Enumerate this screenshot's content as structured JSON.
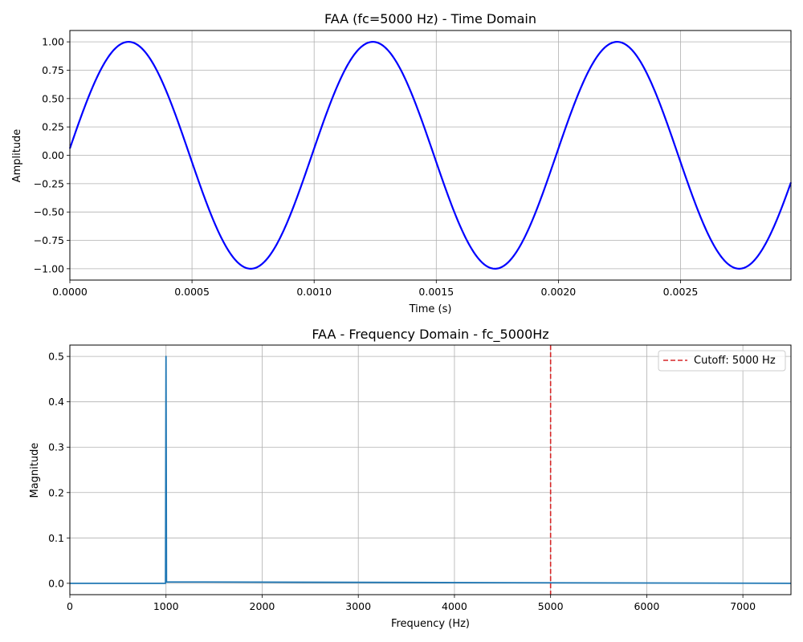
{
  "chart_data": [
    {
      "type": "line",
      "title": "FAA (fc=5000 Hz) - Time Domain",
      "xlabel": "Time (s)",
      "ylabel": "Amplitude",
      "xlim": [
        0,
        0.002952
      ],
      "ylim": [
        -1.1,
        1.1
      ],
      "x_ticks": [
        0.0,
        0.0005,
        0.001,
        0.0015,
        0.002,
        0.0025
      ],
      "x_tick_labels": [
        "0.0000",
        "0.0005",
        "0.0010",
        "0.0015",
        "0.0020",
        "0.0025"
      ],
      "y_ticks": [
        -1.0,
        -0.75,
        -0.5,
        -0.25,
        0.0,
        0.25,
        0.5,
        0.75,
        1.0
      ],
      "y_tick_labels": [
        "−1.00",
        "−0.75",
        "−0.50",
        "−0.25",
        "0.00",
        "0.25",
        "0.50",
        "0.75",
        "1.00"
      ],
      "grid": true,
      "series": [
        {
          "name": "",
          "color": "#0000ff",
          "function": "sin",
          "frequency_hz": 1000,
          "amplitude": 1.0,
          "phase_rad": 0.06,
          "x_range": [
            0,
            0.002952
          ]
        }
      ]
    },
    {
      "type": "line",
      "title": "FAA - Frequency Domain - fc_5000Hz",
      "xlabel": "Frequency (Hz)",
      "ylabel": "Magnitude",
      "xlim": [
        0,
        7500
      ],
      "ylim": [
        -0.025,
        0.525
      ],
      "x_ticks": [
        0,
        1000,
        2000,
        3000,
        4000,
        5000,
        6000,
        7000
      ],
      "x_tick_labels": [
        "0",
        "1000",
        "2000",
        "3000",
        "4000",
        "5000",
        "6000",
        "7000"
      ],
      "y_ticks": [
        0.0,
        0.1,
        0.2,
        0.3,
        0.4,
        0.5
      ],
      "y_tick_labels": [
        "0.0",
        "0.1",
        "0.2",
        "0.3",
        "0.4",
        "0.5"
      ],
      "grid": true,
      "series": [
        {
          "name": "",
          "color": "#1f77b4",
          "x": [
            0,
            995,
            1000,
            1005,
            7500
          ],
          "y": [
            0.0,
            0.0,
            0.5,
            0.003,
            0.0
          ]
        }
      ],
      "cutoff": {
        "x": 5000,
        "color": "#d62728",
        "label": "Cutoff: 5000 Hz"
      },
      "legend": {
        "placement": "top-right",
        "entries": [
          "Cutoff: 5000 Hz"
        ]
      }
    }
  ]
}
